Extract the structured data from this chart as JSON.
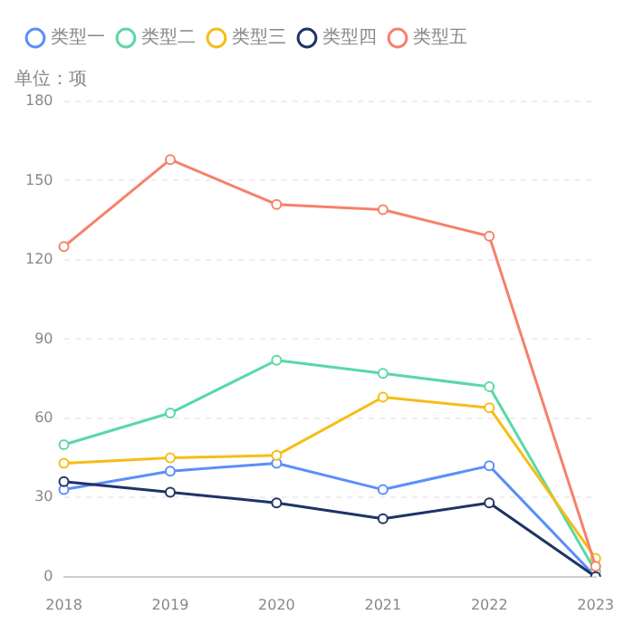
{
  "chart_data": {
    "type": "line",
    "ylabel": "单位：项",
    "categories": [
      "2018",
      "2019",
      "2020",
      "2021",
      "2022",
      "2023"
    ],
    "series": [
      {
        "name": "类型一",
        "color": "#5b8ff9",
        "values": [
          33,
          40,
          43,
          33,
          42,
          0
        ]
      },
      {
        "name": "类型二",
        "color": "#5ad8a6",
        "values": [
          50,
          62,
          82,
          77,
          72,
          2
        ]
      },
      {
        "name": "类型三",
        "color": "#f6bd16",
        "values": [
          43,
          45,
          46,
          68,
          64,
          7
        ]
      },
      {
        "name": "类型四",
        "color": "#1e3465",
        "values": [
          36,
          32,
          28,
          22,
          28,
          0
        ]
      },
      {
        "name": "类型五",
        "color": "#f6816b",
        "values": [
          125,
          158,
          141,
          139,
          129,
          4
        ]
      }
    ],
    "ylim": [
      0,
      180
    ],
    "yticks": [
      0,
      30,
      60,
      90,
      120,
      150,
      180
    ],
    "grid": "y",
    "legend": "top left",
    "marker": "circle",
    "line_style": "solid"
  }
}
